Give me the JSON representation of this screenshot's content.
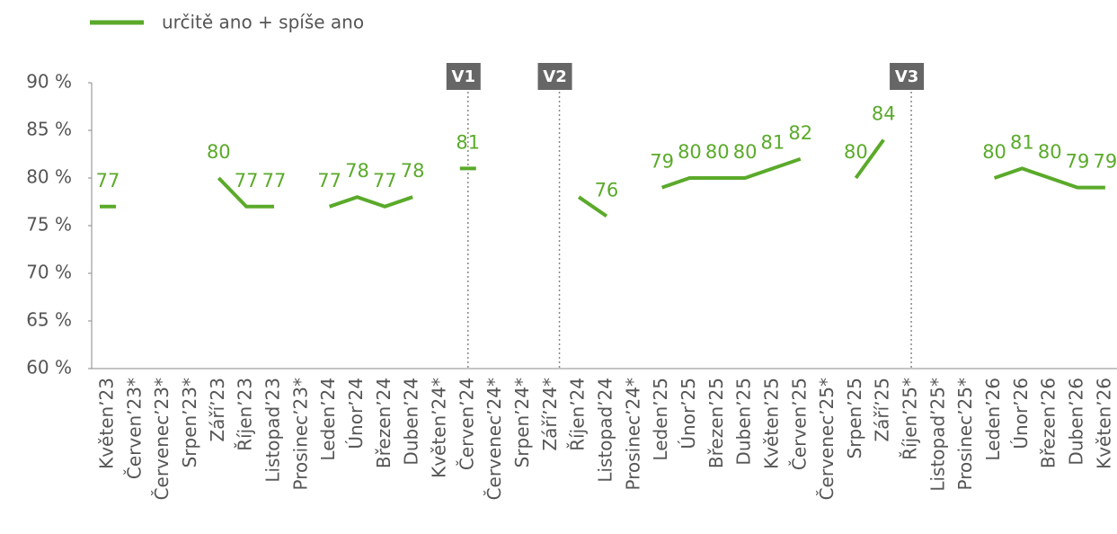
{
  "chart_data": {
    "type": "line",
    "categories": [
      "Květen’23",
      "Červen’23*",
      "Červenec’23*",
      "Srpen’23*",
      "Září’23",
      "Říjen’23",
      "Listopad’23",
      "Prosinec’23*",
      "Leden’24",
      "Únor’24",
      "Březen’24",
      "Duben’24",
      "Květen’24*",
      "Červen’24",
      "Červenec’24*",
      "Srpen’24*",
      "Září’24*",
      "Říjen’24",
      "Listopad’24",
      "Prosinec’24*",
      "Leden’25",
      "Únor’25",
      "Březen’25",
      "Duben’25",
      "Květen’25",
      "Červen’25",
      "Červenec’25*",
      "Srpen’25",
      "Září’25",
      "Říjen’25*",
      "Listopad’25*",
      "Prosinec’25*",
      "Leden’26",
      "Únor’26",
      "Březen’26",
      "Duben’26",
      "Květen’26"
    ],
    "series": [
      {
        "name": "určitě ano + spíše ano",
        "color": "#5aaa2a",
        "values": [
          77,
          null,
          null,
          null,
          80,
          77,
          77,
          null,
          77,
          78,
          77,
          78,
          null,
          81,
          null,
          null,
          null,
          78,
          76,
          null,
          79,
          80,
          80,
          80,
          81,
          82,
          null,
          80,
          84,
          null,
          null,
          null,
          80,
          81,
          80,
          79,
          79
        ],
        "value_labels": [
          "77",
          null,
          null,
          null,
          "80",
          "77",
          "77",
          null,
          "77",
          "78",
          "77",
          "78",
          null,
          "81",
          null,
          null,
          null,
          null,
          "76",
          null,
          "79",
          "80",
          "80",
          "80",
          "81",
          "82",
          null,
          "80",
          "84",
          null,
          null,
          null,
          "80",
          "81",
          "80",
          "79",
          "79"
        ]
      }
    ],
    "ylim": [
      60,
      90
    ],
    "yticks": [
      {
        "value": 60,
        "label": "60 %"
      },
      {
        "value": 65,
        "label": "65 %"
      },
      {
        "value": 70,
        "label": "70 %"
      },
      {
        "value": 75,
        "label": "75 %"
      },
      {
        "value": 80,
        "label": "80 %"
      },
      {
        "value": 85,
        "label": "85 %"
      },
      {
        "value": 90,
        "label": "90 %"
      }
    ],
    "markers": [
      {
        "label": "V1",
        "category": 13.0
      },
      {
        "label": "V2",
        "category": 16.3
      },
      {
        "label": "V3",
        "category": 29.0
      }
    ],
    "legend": "top-left"
  }
}
